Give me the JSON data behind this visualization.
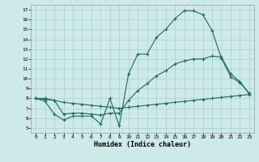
{
  "xlabel": "Humidex (Indice chaleur)",
  "background_color": "#ceeae8",
  "grid_color": "#aacfcc",
  "line_color": "#1a6b5e",
  "xlim": [
    -0.5,
    23.5
  ],
  "ylim": [
    4.5,
    17.5
  ],
  "xticks": [
    0,
    1,
    2,
    3,
    4,
    5,
    6,
    7,
    8,
    9,
    10,
    11,
    12,
    13,
    14,
    15,
    16,
    17,
    18,
    19,
    20,
    21,
    22,
    23
  ],
  "yticks": [
    5,
    6,
    7,
    8,
    9,
    10,
    11,
    12,
    13,
    14,
    15,
    16,
    17
  ],
  "line1_x": [
    0,
    1,
    2,
    3,
    4,
    5,
    6,
    7,
    8,
    9,
    10,
    11,
    12,
    13,
    14,
    15,
    16,
    17,
    18,
    19,
    20,
    21,
    22,
    23
  ],
  "line1_y": [
    8.0,
    7.7,
    6.4,
    5.8,
    6.2,
    6.2,
    6.2,
    5.4,
    8.0,
    5.2,
    10.5,
    12.5,
    12.5,
    14.2,
    15.0,
    16.1,
    16.9,
    16.9,
    16.5,
    14.9,
    12.1,
    10.2,
    9.6,
    8.5
  ],
  "line2_x": [
    0,
    1,
    2,
    3,
    4,
    5,
    6,
    7,
    8,
    9,
    10,
    11,
    12,
    13,
    14,
    15,
    16,
    17,
    18,
    19,
    20,
    21,
    22,
    23
  ],
  "line2_y": [
    8.0,
    7.9,
    7.8,
    7.6,
    7.5,
    7.4,
    7.3,
    7.2,
    7.1,
    7.0,
    7.1,
    7.2,
    7.3,
    7.4,
    7.5,
    7.6,
    7.7,
    7.8,
    7.9,
    8.0,
    8.1,
    8.2,
    8.3,
    8.4
  ],
  "line3_x": [
    0,
    1,
    2,
    3,
    4,
    5,
    6,
    7,
    8,
    9,
    10,
    11,
    12,
    13,
    14,
    15,
    16,
    17,
    18,
    19,
    20,
    21,
    22,
    23
  ],
  "line3_y": [
    8.0,
    8.0,
    7.8,
    6.4,
    6.5,
    6.5,
    6.4,
    6.3,
    6.5,
    6.5,
    7.8,
    8.8,
    9.5,
    10.3,
    10.8,
    11.5,
    11.8,
    12.0,
    12.0,
    12.3,
    12.2,
    10.5,
    9.7,
    8.5
  ]
}
